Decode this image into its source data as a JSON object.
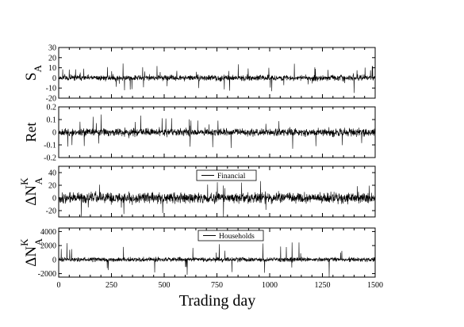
{
  "chart_data": {
    "type": "line",
    "xlabel": "Trading day",
    "xlim": [
      0,
      1500
    ],
    "xticks": [
      0,
      250,
      500,
      750,
      1000,
      1250,
      1500
    ],
    "xtick_labels": [
      "0",
      "250",
      "500",
      "750",
      "1000",
      "1250",
      "1500"
    ],
    "panels": [
      {
        "ylabel": "S",
        "ylabel_sub": "A",
        "ylabel_sup": "",
        "ylim": [
          -20,
          30
        ],
        "yticks": [
          -20,
          -10,
          0,
          10,
          20,
          30
        ],
        "ytick_labels": [
          "-20",
          "-10",
          "0",
          "10",
          "20",
          "30"
        ],
        "legend": "",
        "series": {
          "noise": 2.2,
          "spike_prob": 0.03,
          "spike_amp": 8,
          "seed": 11
        }
      },
      {
        "ylabel": "Ret",
        "ylabel_sub": "",
        "ylabel_sup": "",
        "ylim": [
          -0.2,
          0.2
        ],
        "yticks": [
          -0.2,
          -0.1,
          0,
          0.1,
          0.2
        ],
        "ytick_labels": [
          "-0.2",
          "-0.1",
          "0",
          "0.1",
          "0.2"
        ],
        "legend": "",
        "series": {
          "noise": 0.025,
          "spike_prob": 0.02,
          "spike_amp": 0.08,
          "seed": 23
        }
      },
      {
        "ylabel": "ΔN",
        "ylabel_sub": "A",
        "ylabel_sup": "K",
        "ylim": [
          -30,
          50
        ],
        "yticks": [
          -20,
          0,
          20,
          40
        ],
        "ytick_labels": [
          "-20",
          "0",
          "20",
          "40"
        ],
        "legend": "Financial",
        "series": {
          "noise": 7,
          "spike_prob": 0.01,
          "spike_amp": 18,
          "seed": 37
        }
      },
      {
        "ylabel": "ΔN",
        "ylabel_sub": "A",
        "ylabel_sup": "K",
        "ylim": [
          -2500,
          4500
        ],
        "yticks": [
          -2000,
          0,
          2000,
          4000
        ],
        "ytick_labels": [
          "-2000",
          "0",
          "2000",
          "4000"
        ],
        "legend": "Households",
        "series": {
          "noise": 260,
          "spike_prob": 0.012,
          "spike_amp": 1500,
          "seed": 51
        }
      }
    ]
  }
}
